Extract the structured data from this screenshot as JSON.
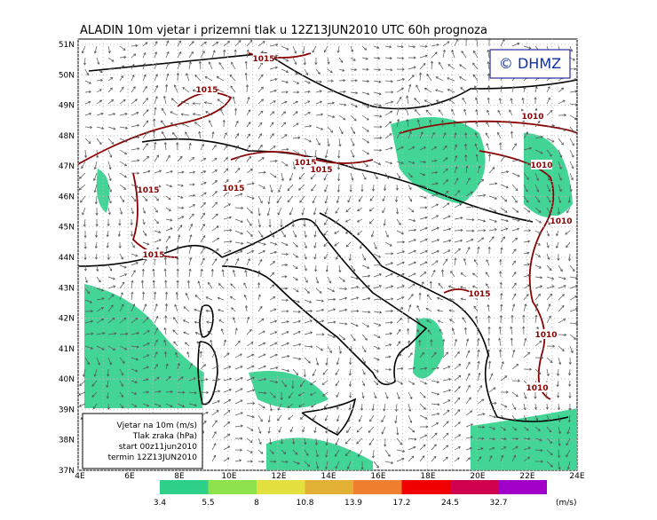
{
  "header": {
    "title": "ALADIN 10m vjetar i prizemni tlak u 12Z13JUN2010 UTC 60h prognoza",
    "logo": "© DHMZ"
  },
  "map": {
    "lat_labels": [
      "51N",
      "50N",
      "49N",
      "48N",
      "47N",
      "46N",
      "45N",
      "44N",
      "43N",
      "42N",
      "41N",
      "40N",
      "39N",
      "38N",
      "37N"
    ],
    "lon_labels": [
      "4E",
      "6E",
      "8E",
      "10E",
      "12E",
      "14E",
      "16E",
      "18E",
      "20E",
      "22E",
      "24E"
    ],
    "isobar_labels": [
      "1015",
      "1015",
      "1015",
      "1015",
      "1015",
      "1015",
      "1015",
      "1015",
      "1010",
      "1010",
      "1010",
      "1010",
      "1010"
    ]
  },
  "legend_box": {
    "lines": [
      "Vjetar na 10m (m/s)",
      "Tlak zraka (hPa)",
      "start 00z11jun2010",
      "termin 12Z13JUN2010"
    ]
  },
  "colorbar": {
    "thresholds": [
      3.4,
      5.5,
      8,
      10.8,
      13.9,
      17.2,
      24.5,
      32.7
    ],
    "unit": "(m/s)",
    "colors": [
      "#2ed08a",
      "#8ee34d",
      "#e4e040",
      "#e2b034",
      "#f08030",
      "#f00000",
      "#d0004e",
      "#a000c8"
    ]
  }
}
